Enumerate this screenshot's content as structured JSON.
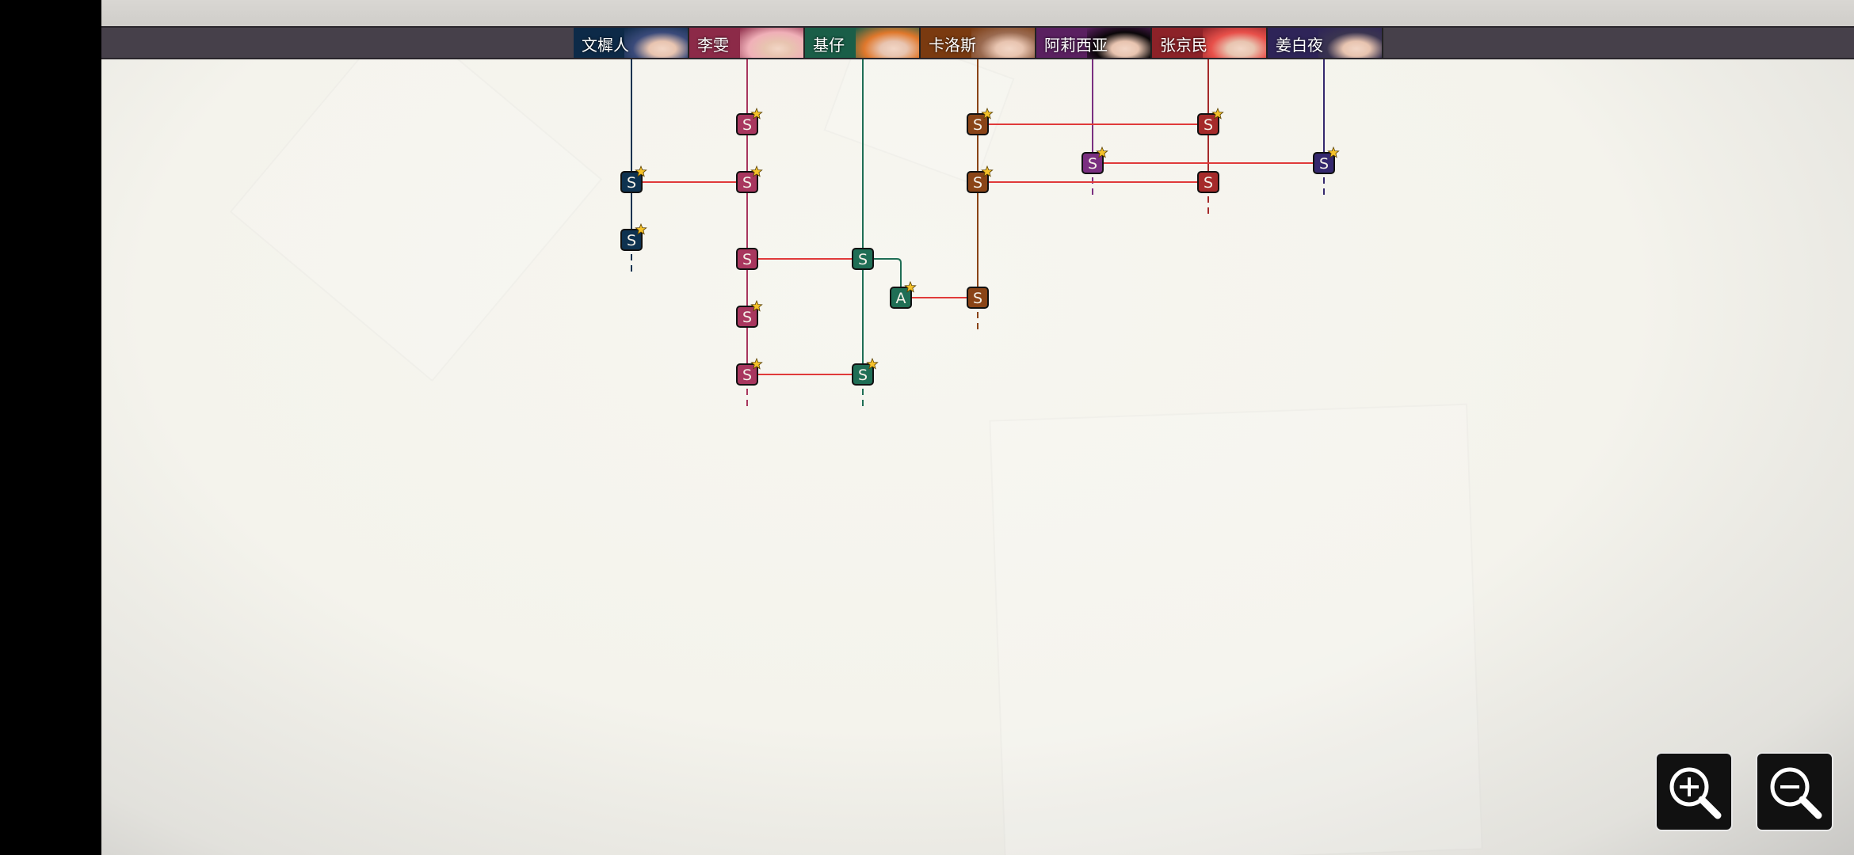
{
  "characters": [
    {
      "name": "文樨人",
      "color": "#0e3250",
      "tab_bg": "#0d2a48",
      "face": "#3a4a7a"
    },
    {
      "name": "李雯",
      "color": "#a8365e",
      "tab_bg": "#8c2a48",
      "face": "#f0b0b8"
    },
    {
      "name": "基仔",
      "color": "#1f6e55",
      "tab_bg": "#1a5e48",
      "face": "#e0782c"
    },
    {
      "name": "卡洛斯",
      "color": "#8a4417",
      "tab_bg": "#7a3a10",
      "face": "#9a6a50"
    },
    {
      "name": "阿莉西亚",
      "color": "#7a2f80",
      "tab_bg": "#5a2060",
      "face": "#0a0608"
    },
    {
      "name": "张京民",
      "color": "#a52a2a",
      "tab_bg": "#8c2228",
      "face": "#e8504a"
    },
    {
      "name": "姜白夜",
      "color": "#35286e",
      "tab_bg": "#2e2458",
      "face": "#3a3450"
    }
  ],
  "link_color": "#e03a3a",
  "nodes": [
    {
      "id": "wen1",
      "char": 0,
      "grade": "S",
      "star": true
    },
    {
      "id": "wen2",
      "char": 0,
      "grade": "S",
      "star": true
    },
    {
      "id": "li1",
      "char": 1,
      "grade": "S",
      "star": true
    },
    {
      "id": "li2",
      "char": 1,
      "grade": "S",
      "star": true
    },
    {
      "id": "li3",
      "char": 1,
      "grade": "S",
      "star": false
    },
    {
      "id": "li4",
      "char": 1,
      "grade": "S",
      "star": true
    },
    {
      "id": "li5",
      "char": 1,
      "grade": "S",
      "star": true
    },
    {
      "id": "ji1",
      "char": 2,
      "grade": "S",
      "star": false
    },
    {
      "id": "ji2",
      "char": 2,
      "grade": "S",
      "star": true
    },
    {
      "id": "jiA",
      "char": 2,
      "grade": "A",
      "star": true
    },
    {
      "id": "ka1",
      "char": 3,
      "grade": "S",
      "star": true
    },
    {
      "id": "ka2",
      "char": 3,
      "grade": "S",
      "star": true
    },
    {
      "id": "ka3",
      "char": 3,
      "grade": "S",
      "star": false
    },
    {
      "id": "a1",
      "char": 4,
      "grade": "S",
      "star": true
    },
    {
      "id": "zh1",
      "char": 5,
      "grade": "S",
      "star": true
    },
    {
      "id": "zh2",
      "char": 5,
      "grade": "S",
      "star": false
    },
    {
      "id": "jb1",
      "char": 6,
      "grade": "S",
      "star": true
    }
  ],
  "links": [
    [
      "wen1",
      "li2"
    ],
    [
      "li3",
      "ji1"
    ],
    [
      "li5",
      "ji2"
    ],
    [
      "jiA",
      "ka3"
    ],
    [
      "ka1",
      "zh1"
    ],
    [
      "a1",
      "jb1"
    ],
    [
      "ka2",
      "zh2"
    ]
  ],
  "branches": [
    [
      "ji1",
      "jiA"
    ]
  ],
  "controls": {
    "zoom_in": "zoom-in",
    "zoom_out": "zoom-out"
  }
}
